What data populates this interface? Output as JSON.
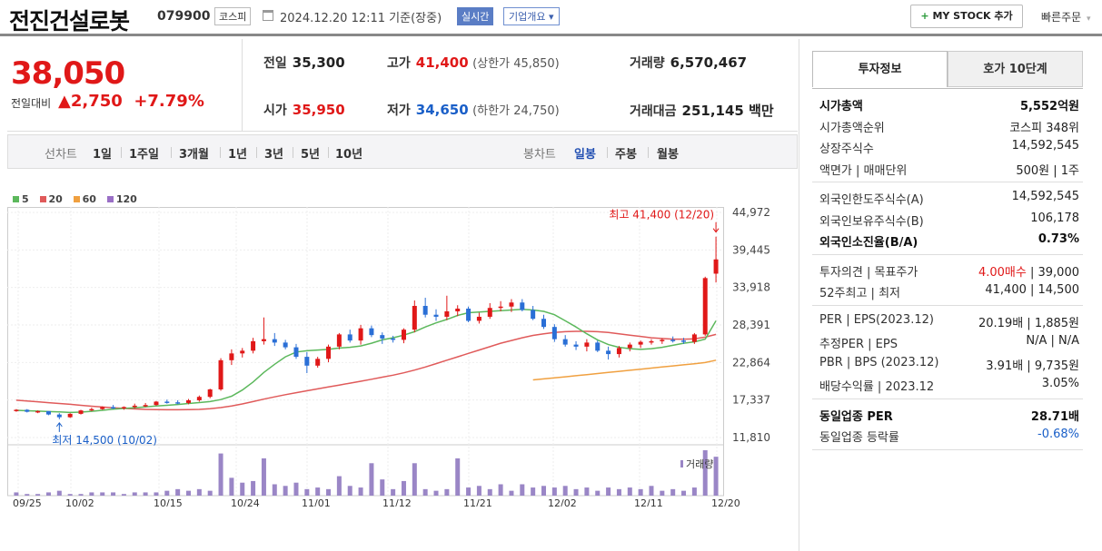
{
  "header": {
    "name": "전진건설로봇",
    "code": "079900",
    "market": "코스피",
    "datetime": "2024.12.20 12:11",
    "basis": "기준(장중)",
    "realtime": "실시간",
    "corp_info": "기업개요 ▾",
    "mystock": "MY STOCK 추가",
    "quick": "빠른주문"
  },
  "quote": {
    "price": "38,050",
    "chg_label": "전일대비",
    "chg_abs": "▲2,750",
    "chg_pct": "+7.79%",
    "prev_l": "전일",
    "prev_v": "35,300",
    "high_l": "고가",
    "high_v": "41,400",
    "upper_l": "(상한가 45,850)",
    "vol_l": "거래량",
    "vol_v": "6,570,467",
    "open_l": "시가",
    "open_v": "35,950",
    "low_l": "저가",
    "low_v": "34,650",
    "lower_l": "(하한가 24,750)",
    "amt_l": "거래대금",
    "amt_v": "251,145 백만"
  },
  "tabs": {
    "line": "선차트",
    "periods": [
      "1일",
      "1주일",
      "3개월",
      "1년",
      "3년",
      "5년",
      "10년"
    ],
    "candle": "봉차트",
    "candle_periods": [
      "일봉",
      "주봉",
      "월봉"
    ]
  },
  "legend": [
    "5",
    "20",
    "60",
    "120"
  ],
  "colors": {
    "ma5": "#5cb85c",
    "ma20": "#e05a5a",
    "ma60": "#f0a040",
    "ma120": "#9a6fc6",
    "up": "#e01818",
    "down": "#2a6fd6",
    "vol": "#9a86c6"
  },
  "chart_data": {
    "type": "candlestick",
    "y_ticks": [
      "44,972",
      "39,445",
      "33,918",
      "28,391",
      "22,864",
      "17,337",
      "11,810"
    ],
    "ylim": [
      11810,
      44972
    ],
    "x_ticks": [
      "09/25",
      "10/02",
      "10/15",
      "10/24",
      "11/01",
      "11/12",
      "11/21",
      "12/02",
      "12/11",
      "12/20"
    ],
    "annot_high": "최고 41,400 (12/20)",
    "annot_low": "최저 14,500 (10/02)",
    "vol_label": "거래량",
    "candles": [
      [
        15800,
        16000,
        15600,
        15900
      ],
      [
        15900,
        16000,
        15500,
        15600
      ],
      [
        15600,
        15800,
        15400,
        15700
      ],
      [
        15700,
        15700,
        15100,
        15200
      ],
      [
        15200,
        15400,
        14500,
        14800
      ],
      [
        14800,
        15400,
        14700,
        15300
      ],
      [
        15300,
        15900,
        15200,
        15800
      ],
      [
        15800,
        16200,
        15700,
        16000
      ],
      [
        16000,
        16400,
        15900,
        16300
      ],
      [
        16300,
        16600,
        16000,
        16100
      ],
      [
        16100,
        16400,
        15900,
        16300
      ],
      [
        16300,
        16800,
        16100,
        16500
      ],
      [
        16500,
        16900,
        16300,
        16600
      ],
      [
        16600,
        17200,
        16500,
        17100
      ],
      [
        17100,
        17400,
        16800,
        17000
      ],
      [
        17000,
        17300,
        16700,
        16900
      ],
      [
        16900,
        17500,
        16700,
        17300
      ],
      [
        17300,
        18000,
        17100,
        17800
      ],
      [
        17800,
        19000,
        17600,
        18900
      ],
      [
        18900,
        23500,
        18700,
        23200
      ],
      [
        23200,
        24800,
        22500,
        24200
      ],
      [
        24200,
        25000,
        23600,
        24600
      ],
      [
        24600,
        26500,
        24200,
        26000
      ],
      [
        26000,
        29500,
        25500,
        26300
      ],
      [
        26300,
        27200,
        25300,
        25800
      ],
      [
        25800,
        26200,
        24800,
        25100
      ],
      [
        25100,
        25600,
        23400,
        23700
      ],
      [
        23700,
        24400,
        21300,
        22400
      ],
      [
        22400,
        23700,
        22100,
        23400
      ],
      [
        23400,
        25500,
        22900,
        25200
      ],
      [
        25200,
        27200,
        24800,
        27000
      ],
      [
        27000,
        27700,
        25800,
        26100
      ],
      [
        26100,
        28400,
        25500,
        27900
      ],
      [
        27900,
        28300,
        26600,
        26900
      ],
      [
        26900,
        27300,
        25600,
        26400
      ],
      [
        26400,
        26800,
        25800,
        26200
      ],
      [
        26200,
        27900,
        25700,
        27700
      ],
      [
        27700,
        32000,
        27300,
        31200
      ],
      [
        31200,
        32400,
        29500,
        29900
      ],
      [
        29900,
        30700,
        29000,
        29600
      ],
      [
        29600,
        32700,
        29100,
        30400
      ],
      [
        30400,
        31300,
        29700,
        30800
      ],
      [
        30800,
        31100,
        28800,
        29000
      ],
      [
        29000,
        30200,
        28600,
        29600
      ],
      [
        29600,
        31600,
        29300,
        30900
      ],
      [
        30900,
        31900,
        30400,
        31100
      ],
      [
        31100,
        32200,
        30300,
        31700
      ],
      [
        31700,
        32200,
        30400,
        30600
      ],
      [
        30600,
        31200,
        29100,
        29300
      ],
      [
        29300,
        29900,
        27800,
        28100
      ],
      [
        28100,
        28500,
        25900,
        26300
      ],
      [
        26300,
        26900,
        25200,
        25500
      ],
      [
        25500,
        26000,
        24700,
        25200
      ],
      [
        25200,
        26300,
        24500,
        25800
      ],
      [
        25800,
        26100,
        24400,
        24600
      ],
      [
        24600,
        25200,
        23300,
        24100
      ],
      [
        24100,
        25300,
        23600,
        25000
      ],
      [
        25000,
        25800,
        24500,
        25500
      ],
      [
        25500,
        26100,
        25000,
        25900
      ],
      [
        25900,
        26300,
        25500,
        26000
      ],
      [
        26000,
        26400,
        25600,
        26200
      ],
      [
        26200,
        26700,
        25800,
        26100
      ],
      [
        26100,
        26500,
        25600,
        25900
      ],
      [
        25900,
        27200,
        25600,
        27000
      ],
      [
        27000,
        35500,
        26800,
        35300
      ],
      [
        35950,
        41400,
        34650,
        38050
      ]
    ],
    "ma5": [
      15820,
      15760,
      15700,
      15640,
      15580,
      15500,
      15560,
      15680,
      15820,
      15980,
      16100,
      16200,
      16320,
      16450,
      16560,
      16680,
      16820,
      16960,
      17100,
      17400,
      17900,
      18800,
      20000,
      21400,
      22600,
      23700,
      24400,
      24600,
      24700,
      24800,
      25000,
      25100,
      25300,
      25700,
      26200,
      26500,
      26900,
      27400,
      28100,
      28700,
      29200,
      29800,
      30200,
      30300,
      30400,
      30500,
      30600,
      30700,
      30600,
      30400,
      29900,
      29000,
      28100,
      27100,
      26200,
      25500,
      25100,
      24900,
      24800,
      24900,
      25100,
      25400,
      25700,
      25900,
      26300,
      29000
    ],
    "ma20": [
      17300,
      17200,
      17080,
      16950,
      16820,
      16700,
      16560,
      16420,
      16300,
      16200,
      16100,
      16020,
      15960,
      15920,
      15900,
      15900,
      15920,
      15960,
      16050,
      16220,
      16460,
      16760,
      17100,
      17460,
      17800,
      18120,
      18420,
      18700,
      18980,
      19260,
      19540,
      19820,
      20100,
      20400,
      20700,
      21000,
      21350,
      21750,
      22200,
      22700,
      23200,
      23700,
      24200,
      24700,
      25200,
      25700,
      26100,
      26500,
      26850,
      27100,
      27300,
      27400,
      27450,
      27450,
      27400,
      27300,
      27100,
      26900,
      26700,
      26500,
      26400,
      26300,
      26300,
      26350,
      26600,
      27000
    ],
    "ma60": [
      null,
      null,
      null,
      null,
      null,
      null,
      null,
      null,
      null,
      null,
      null,
      null,
      null,
      null,
      null,
      null,
      null,
      null,
      null,
      null,
      null,
      null,
      null,
      null,
      null,
      null,
      null,
      null,
      null,
      null,
      null,
      null,
      null,
      null,
      null,
      null,
      null,
      null,
      null,
      null,
      null,
      null,
      null,
      null,
      null,
      null,
      null,
      null,
      20300,
      20450,
      20600,
      20760,
      20920,
      21080,
      21240,
      21400,
      21560,
      21720,
      21880,
      22040,
      22200,
      22360,
      22520,
      22680,
      22860,
      23200
    ],
    "volume": [
      2,
      1,
      1,
      2,
      3,
      1,
      1,
      2,
      2,
      2,
      1,
      2,
      2,
      2,
      3,
      4,
      3,
      4,
      3,
      26,
      11,
      8,
      9,
      23,
      7,
      6,
      8,
      4,
      5,
      4,
      12,
      6,
      5,
      20,
      10,
      4,
      9,
      20,
      4,
      3,
      4,
      23,
      5,
      6,
      4,
      7,
      3,
      7,
      5,
      6,
      5,
      6,
      4,
      5,
      3,
      5,
      4,
      5,
      4,
      6,
      3,
      4,
      3,
      5,
      28,
      24
    ]
  },
  "right": {
    "tab_active": "투자정보",
    "tab_other": "호가 10단계",
    "g1": [
      [
        "시가총액",
        "5,552억원",
        true
      ],
      [
        "시가총액순위",
        "코스피 348위",
        false
      ],
      [
        "상장주식수",
        "14,592,545",
        false
      ],
      [
        "액면가 | 매매단위",
        "500원 | 1주",
        false
      ]
    ],
    "g2": [
      [
        "외국인한도주식수(A)",
        "14,592,545",
        false
      ],
      [
        "외국인보유주식수(B)",
        "106,178",
        false
      ],
      [
        "외국인소진율(B/A)",
        "0.73%",
        true
      ]
    ],
    "g3": [
      [
        "투자의견 | 목표주가",
        "4.00매수 | 39,000",
        false
      ],
      [
        "52주최고 | 최저",
        "41,400 | 14,500",
        false
      ]
    ],
    "g4": [
      [
        "PER | EPS(2023.12)",
        "20.19배 | 1,885원",
        false
      ],
      [
        "추정PER | EPS",
        "N/A | N/A",
        false
      ],
      [
        "PBR | BPS (2023.12)",
        "3.91배 | 9,735원",
        false
      ],
      [
        "배당수익률 | 2023.12",
        "3.05%",
        false
      ]
    ],
    "g5": [
      [
        "동일업종 PER",
        "28.71배",
        true
      ],
      [
        "동일업종 등락률",
        "-0.68%",
        false
      ]
    ]
  }
}
